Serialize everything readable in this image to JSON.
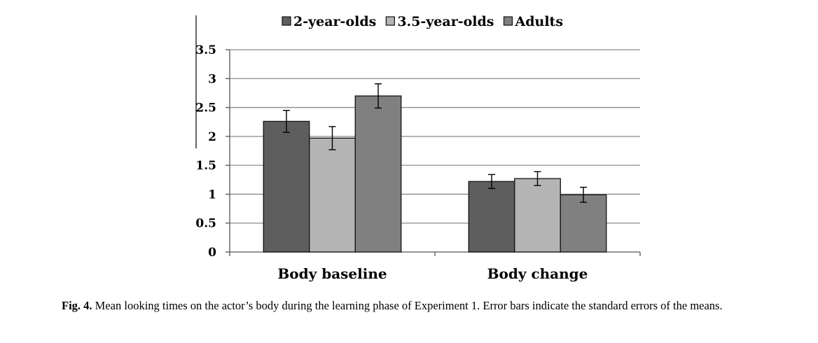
{
  "chart_data": {
    "type": "bar",
    "title": "",
    "xlabel": "",
    "ylabel": "",
    "ylim": [
      0,
      3.5
    ],
    "yticks": [
      "0",
      "0.5",
      "1",
      "1.5",
      "2",
      "2.5",
      "3",
      "3.5"
    ],
    "grid": true,
    "legend_position": "top",
    "categories": [
      "Body baseline",
      "Body change"
    ],
    "series": [
      {
        "name": "2-year-olds",
        "color": "#5e5e5e",
        "values": [
          2.26,
          1.22
        ],
        "errors": [
          0.19,
          0.12
        ]
      },
      {
        "name": "3.5-year-olds",
        "color": "#b4b4b4",
        "values": [
          1.97,
          1.27
        ],
        "errors": [
          0.2,
          0.12
        ]
      },
      {
        "name": "Adults",
        "color": "#808080",
        "values": [
          2.7,
          0.99
        ],
        "errors": [
          0.21,
          0.13
        ]
      }
    ]
  },
  "caption": {
    "label": "Fig. 4.",
    "text": " Mean looking times on the actor’s body during the learning phase of Experiment 1. Error bars indicate the standard errors of the means."
  }
}
